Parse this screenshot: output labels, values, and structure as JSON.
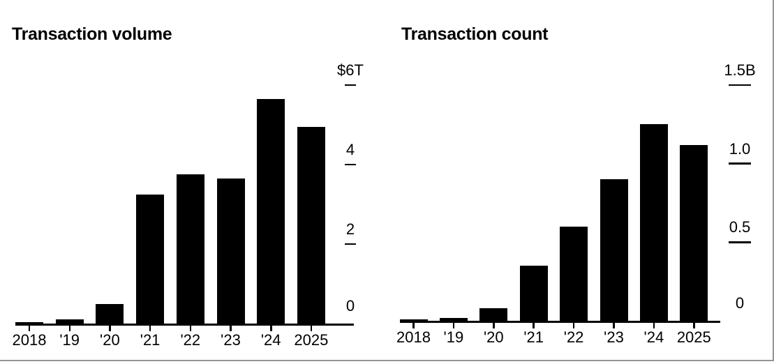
{
  "styles": {
    "background": "#ffffff",
    "bar_color": "#000000",
    "text_color": "#000000",
    "border_color": "#949494"
  },
  "chart_data": [
    {
      "type": "bar",
      "title": "Transaction volume",
      "unit": "trillions of US dollars",
      "categories": [
        "2018",
        "'19",
        "'20",
        "'21",
        "'22",
        "'23",
        "'24",
        "2025"
      ],
      "values": [
        0.03,
        0.1,
        0.5,
        3.25,
        3.75,
        3.65,
        5.65,
        4.95
      ],
      "ylim": [
        0,
        6
      ],
      "y_ticks": [
        {
          "value": 6,
          "label": "$6T"
        },
        {
          "value": 4,
          "label": "4"
        },
        {
          "value": 2,
          "label": "2"
        },
        {
          "value": 0,
          "label": "0"
        }
      ],
      "legend": "none",
      "grid": "off",
      "tick_label_side": "right",
      "bar_color": "#000000"
    },
    {
      "type": "bar",
      "title": "Transaction count",
      "unit": "billions",
      "categories": [
        "2018",
        "'19",
        "'20",
        "'21",
        "'22",
        "'23",
        "'24",
        "2025"
      ],
      "values": [
        0.01,
        0.02,
        0.08,
        0.35,
        0.6,
        0.9,
        1.25,
        1.12
      ],
      "ylim": [
        0,
        1.5
      ],
      "y_ticks": [
        {
          "value": 1.5,
          "label": "1.5B"
        },
        {
          "value": 1.0,
          "label": "1.0"
        },
        {
          "value": 0.5,
          "label": "0.5"
        },
        {
          "value": 0,
          "label": "0"
        }
      ],
      "legend": "none",
      "grid": "off",
      "tick_label_side": "right",
      "bar_color": "#000000"
    }
  ]
}
